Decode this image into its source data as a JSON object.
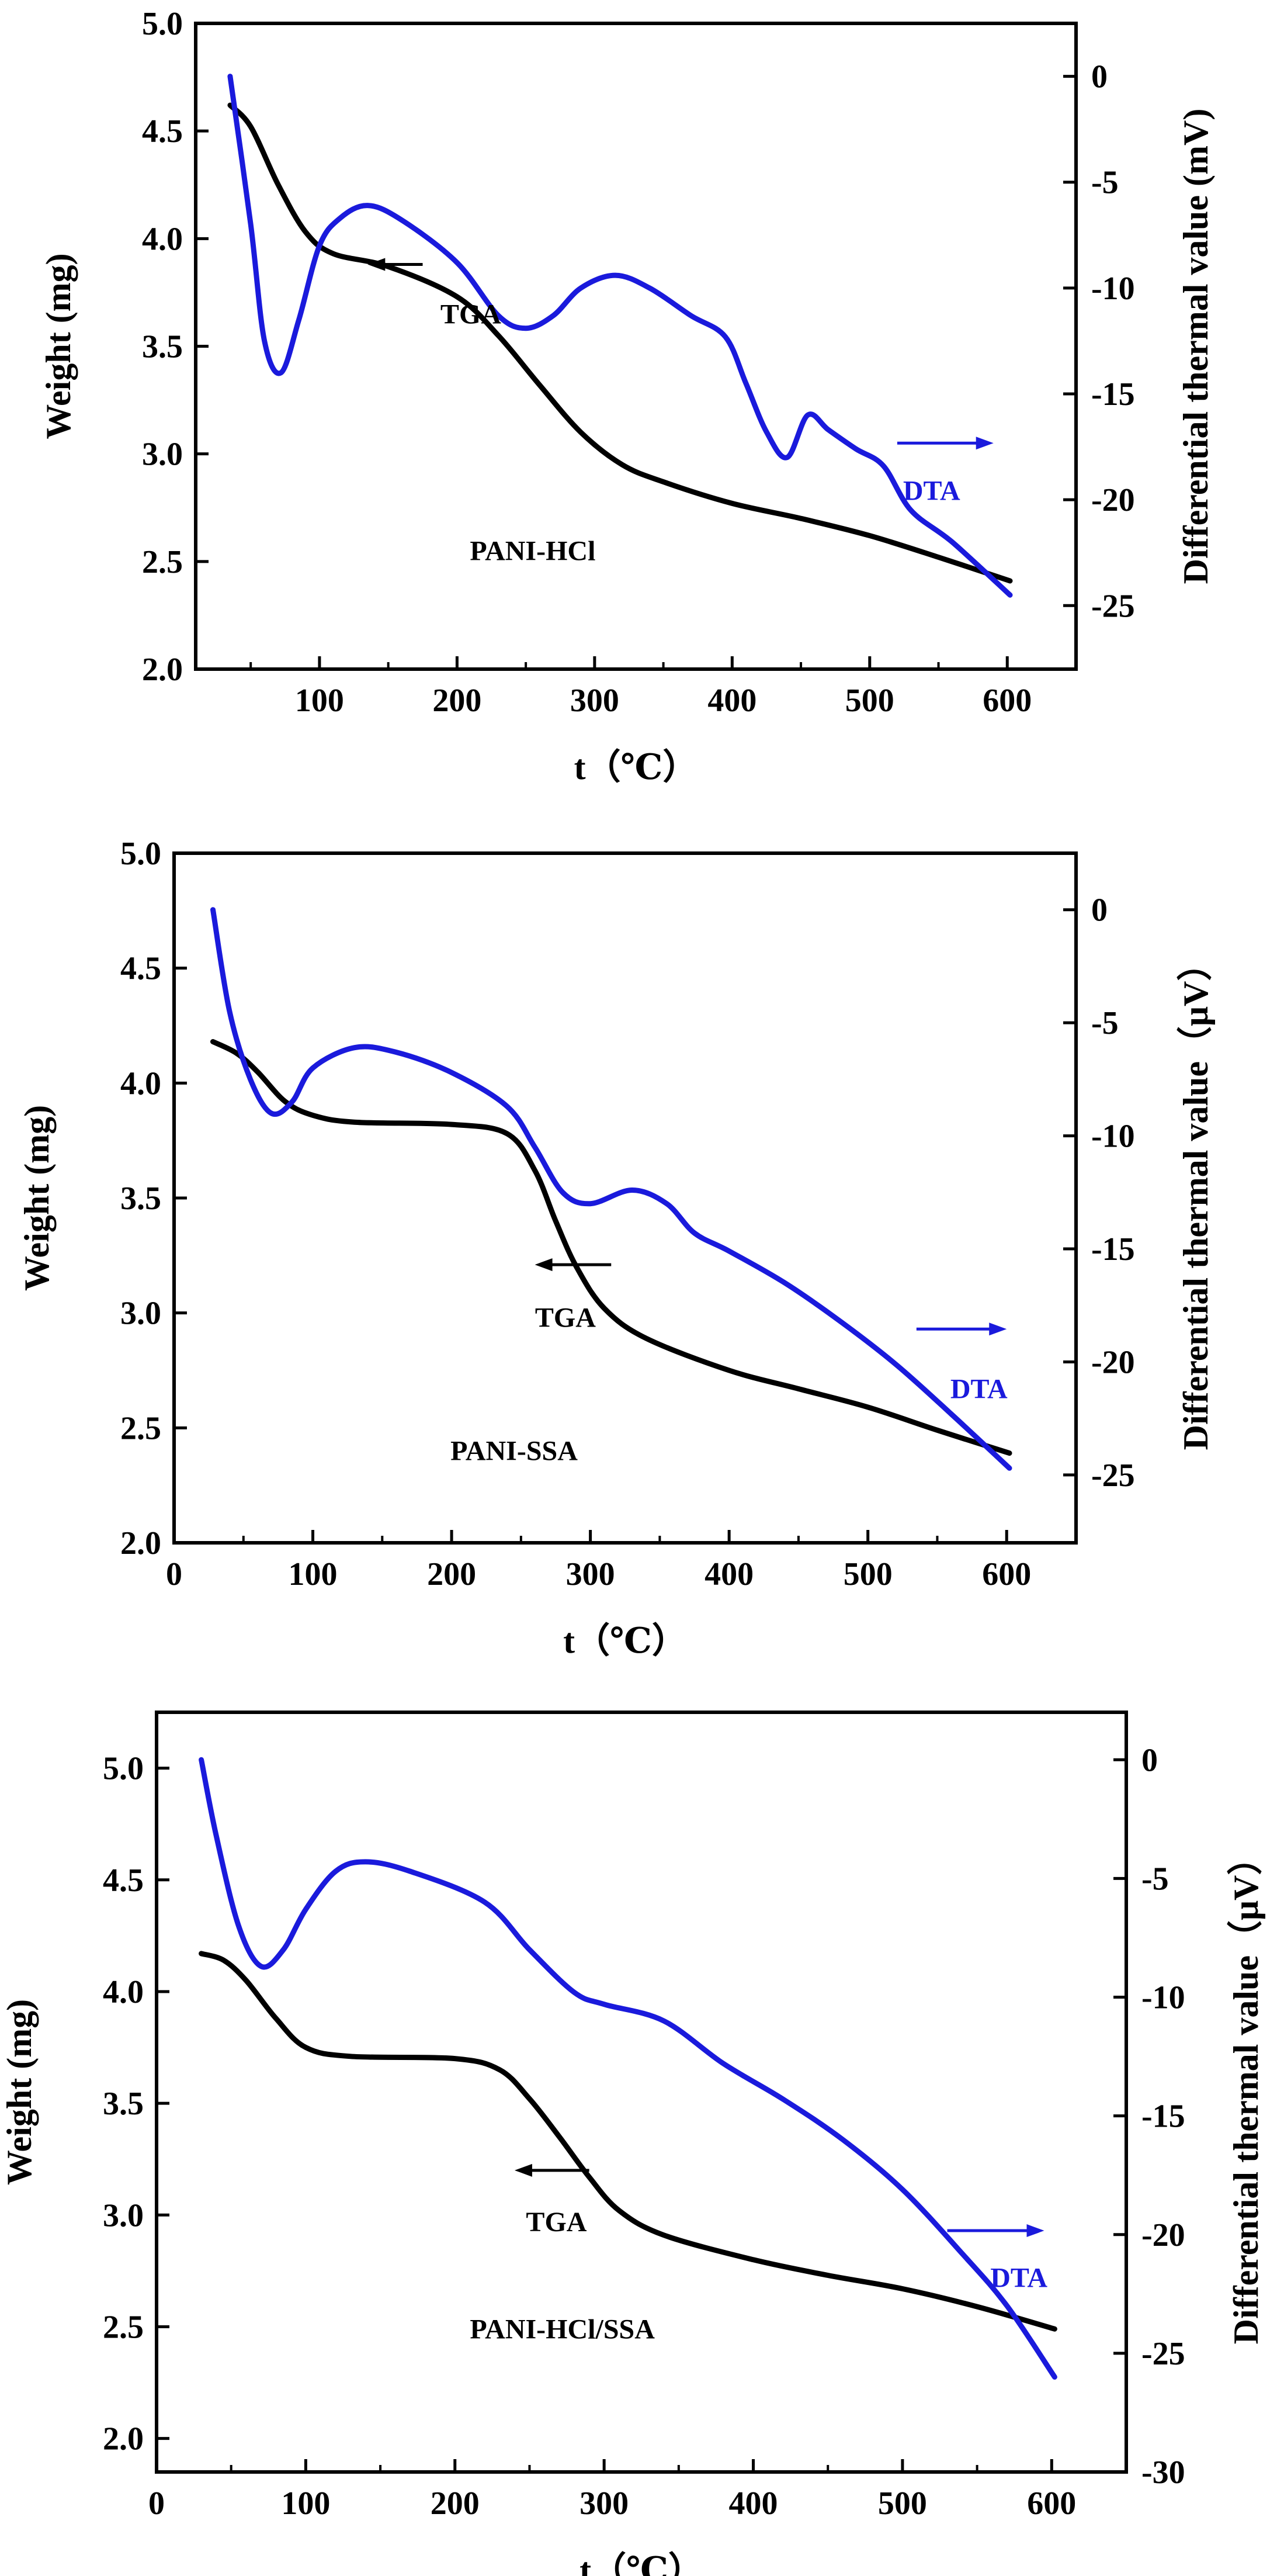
{
  "chart_data": [
    {
      "type": "line",
      "xlabel": "t（℃）",
      "ylabel": "Weight (mg)",
      "y2label": "Differential thermal value (mV)",
      "xlim": [
        10,
        650
      ],
      "ylim": [
        2.0,
        5.0
      ],
      "y2lim": [
        -28,
        2.5
      ],
      "xticks": [
        "100",
        "200",
        "300",
        "400",
        "500",
        "600"
      ],
      "yticks": [
        "2.0",
        "2.5",
        "3.0",
        "3.5",
        "4.0",
        "4.5",
        "5.0"
      ],
      "y2ticks": [
        "0",
        "-5",
        "-10",
        "-15",
        "-20",
        "-25"
      ],
      "series": [
        {
          "name": "TGA",
          "color": "#000000",
          "axis": "left",
          "x": [
            35,
            50,
            70,
            90,
            110,
            150,
            200,
            230,
            260,
            290,
            320,
            350,
            400,
            450,
            500,
            550,
            602
          ],
          "y": [
            4.62,
            4.52,
            4.25,
            4.03,
            3.93,
            3.87,
            3.73,
            3.55,
            3.32,
            3.1,
            2.95,
            2.87,
            2.77,
            2.7,
            2.62,
            2.52,
            2.41
          ]
        },
        {
          "name": "DTA",
          "color": "#1a1adc",
          "axis": "right",
          "x": [
            35,
            50,
            60,
            72,
            85,
            100,
            115,
            135,
            160,
            200,
            230,
            250,
            270,
            290,
            315,
            340,
            370,
            395,
            410,
            425,
            440,
            455,
            470,
            490,
            510,
            530,
            560,
            602
          ],
          "y": [
            0,
            -7.0,
            -12.5,
            -14.0,
            -11.5,
            -8.0,
            -6.7,
            -6.1,
            -6.8,
            -8.8,
            -11.3,
            -11.9,
            -11.3,
            -10.0,
            -9.4,
            -10.0,
            -11.3,
            -12.3,
            -14.5,
            -16.8,
            -18.0,
            -16.0,
            -16.7,
            -17.6,
            -18.4,
            -20.5,
            -22.0,
            -24.5
          ]
        }
      ],
      "annotations": [
        {
          "text": "TGA",
          "color": "#000000",
          "x": 210,
          "y": 3.65,
          "arrow": "left",
          "arrow_from": 175,
          "arrow_to": 135,
          "arrow_y": 3.88
        },
        {
          "text": "DTA",
          "color": "#1a1adc",
          "x": 545,
          "y": 2.83,
          "arrow": "right",
          "arrow_from": 520,
          "arrow_to": 590,
          "arrow_y": 3.05
        },
        {
          "text": "PANI-HCl",
          "color": "#000000",
          "x": 255,
          "y": 2.55
        }
      ]
    },
    {
      "type": "line",
      "xlabel": "t（℃）",
      "ylabel": "Weight (mg)",
      "y2label": "Differential thermal value（μV）",
      "xlim": [
        0,
        650
      ],
      "ylim": [
        2.0,
        5.0
      ],
      "y2lim": [
        -28,
        2.5
      ],
      "xticks": [
        "0",
        "100",
        "200",
        "300",
        "400",
        "500",
        "600"
      ],
      "yticks": [
        "2.0",
        "2.5",
        "3.0",
        "3.5",
        "4.0",
        "4.5",
        "5.0"
      ],
      "y2ticks": [
        "0",
        "-5",
        "-10",
        "-15",
        "-20",
        "-25"
      ],
      "series": [
        {
          "name": "TGA",
          "color": "#000000",
          "axis": "left",
          "x": [
            28,
            45,
            60,
            80,
            100,
            130,
            200,
            240,
            260,
            275,
            290,
            310,
            340,
            400,
            450,
            500,
            550,
            602
          ],
          "y": [
            4.18,
            4.13,
            4.05,
            3.92,
            3.86,
            3.83,
            3.82,
            3.78,
            3.62,
            3.4,
            3.2,
            3.02,
            2.89,
            2.75,
            2.67,
            2.59,
            2.49,
            2.39
          ]
        },
        {
          "name": "DTA",
          "color": "#1a1adc",
          "axis": "right",
          "x": [
            28,
            40,
            55,
            70,
            85,
            100,
            130,
            160,
            200,
            240,
            260,
            280,
            300,
            330,
            355,
            375,
            400,
            440,
            480,
            520,
            560,
            602
          ],
          "y": [
            0,
            -4.5,
            -7.5,
            -9.0,
            -8.5,
            -7.0,
            -6.1,
            -6.3,
            -7.2,
            -8.7,
            -10.5,
            -12.5,
            -13.0,
            -12.4,
            -13.0,
            -14.3,
            -15.1,
            -16.5,
            -18.2,
            -20.1,
            -22.3,
            -24.7
          ]
        }
      ],
      "annotations": [
        {
          "text": "TGA",
          "color": "#000000",
          "x": 282,
          "y": 2.98,
          "arrow": "left",
          "arrow_from": 315,
          "arrow_to": 260,
          "arrow_y": 3.21
        },
        {
          "text": "DTA",
          "color": "#1a1adc",
          "x": 580,
          "y": 2.67,
          "arrow": "right",
          "arrow_from": 535,
          "arrow_to": 600,
          "arrow_y": 2.93
        },
        {
          "text": "PANI-SSA",
          "color": "#000000",
          "x": 245,
          "y": 2.4
        }
      ]
    },
    {
      "type": "line",
      "xlabel": "t（℃）",
      "ylabel": "Weight (mg)",
      "y2label": "Differential thermal value（μV）",
      "xlim": [
        0,
        650
      ],
      "ylim": [
        1.85,
        5.25
      ],
      "y2lim": [
        -30,
        2
      ],
      "xticks": [
        "0",
        "100",
        "200",
        "300",
        "400",
        "500",
        "600"
      ],
      "yticks": [
        "2.0",
        "2.5",
        "3.0",
        "3.5",
        "4.0",
        "4.5",
        "5.0"
      ],
      "y2ticks": [
        "0",
        "-5",
        "-10",
        "-15",
        "-20",
        "-25",
        "-30"
      ],
      "series": [
        {
          "name": "TGA",
          "color": "#000000",
          "axis": "left",
          "x": [
            30,
            45,
            60,
            80,
            100,
            130,
            200,
            230,
            250,
            270,
            290,
            310,
            340,
            400,
            450,
            500,
            550,
            602
          ],
          "y": [
            4.17,
            4.14,
            4.05,
            3.88,
            3.75,
            3.71,
            3.7,
            3.65,
            3.52,
            3.35,
            3.17,
            3.02,
            2.91,
            2.8,
            2.73,
            2.67,
            2.59,
            2.49
          ]
        },
        {
          "name": "DTA",
          "color": "#1a1adc",
          "axis": "right",
          "x": [
            30,
            40,
            55,
            70,
            85,
            100,
            120,
            140,
            170,
            220,
            250,
            280,
            300,
            340,
            380,
            420,
            460,
            500,
            540,
            570,
            602
          ],
          "y": [
            0,
            -3.2,
            -7.0,
            -8.7,
            -8.0,
            -6.3,
            -4.7,
            -4.3,
            -4.7,
            -6.0,
            -8.0,
            -9.8,
            -10.3,
            -11.0,
            -12.8,
            -14.3,
            -16.0,
            -18.1,
            -20.8,
            -23.0,
            -26.0
          ]
        }
      ],
      "annotations": [
        {
          "text": "TGA",
          "color": "#000000",
          "x": 268,
          "y": 2.97,
          "arrow": "left",
          "arrow_from": 290,
          "arrow_to": 240,
          "arrow_y": 3.2
        },
        {
          "text": "DTA",
          "color": "#1a1adc",
          "x": 578,
          "y": 2.72,
          "arrow": "right",
          "arrow_from": 530,
          "arrow_to": 595,
          "arrow_y": 2.93
        },
        {
          "text": "PANI-HCl/SSA",
          "color": "#000000",
          "x": 272,
          "y": 2.49
        }
      ]
    }
  ]
}
